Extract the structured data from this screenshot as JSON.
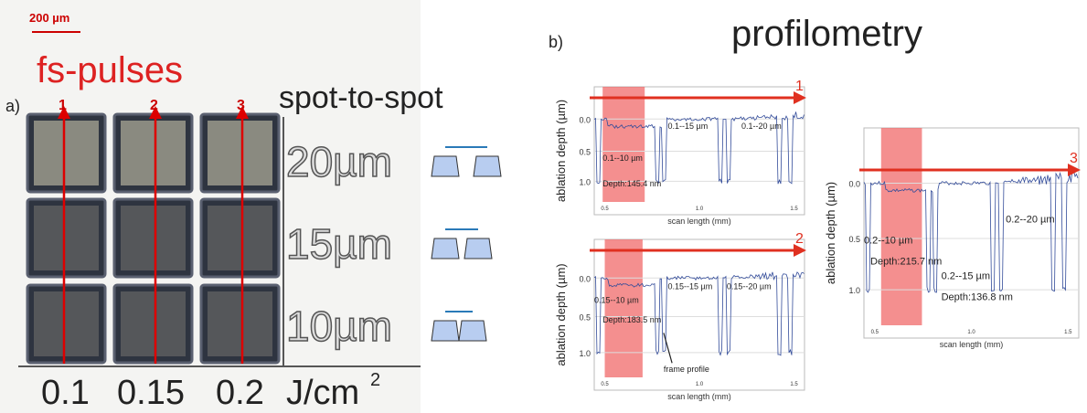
{
  "scale_bar": "200 µm",
  "left": {
    "panel_label": "a)",
    "title": "fs-pulses",
    "columns": [
      "1",
      "2",
      "3"
    ],
    "spot_heading": "spot-to-spot",
    "spacings": [
      "20µm",
      "15µm",
      "10µm"
    ],
    "fluences": [
      "0.1",
      "0.15",
      "0.2"
    ],
    "unit": "J/cm",
    "unit_sup": "2"
  },
  "right": {
    "panel_label": "b)",
    "title": "profilometry",
    "plots": [
      {
        "arrow_label": "1",
        "y_label": "ablation depth (µm)",
        "x_label": "scan length (mm)",
        "y_ticks": [
          "0.0",
          "0.5",
          "1.0"
        ],
        "x_ticks": [
          "0.5",
          "1.0",
          "1.5"
        ],
        "annotations": [
          "0.1--10 µm",
          "Depth:145.4 nm",
          "0.1--15 µm",
          "0.1--20 µm"
        ]
      },
      {
        "arrow_label": "2",
        "y_label": "ablation depth (µm)",
        "x_label": "scan length (mm)",
        "y_ticks": [
          "0.0",
          "0.5",
          "1.0"
        ],
        "x_ticks": [
          "0.5",
          "1.0",
          "1.5"
        ],
        "annotations": [
          "0.15--10 µm",
          "Depth:183.5 nm",
          "0.15--15 µm",
          "0.15--20 µm",
          "frame profile"
        ]
      },
      {
        "arrow_label": "3",
        "y_label": "ablation depth (µm)",
        "x_label": "scan length (mm)",
        "y_ticks": [
          "0.0",
          "0.5",
          "1.0"
        ],
        "x_ticks": [
          "0.5",
          "1.0",
          "1.5"
        ],
        "annotations": [
          "0.2--10 µm",
          "Depth:215.7 nm",
          "0.2--15 µm",
          "Depth:136.8 nm",
          "0.2--20 µm"
        ]
      }
    ]
  }
}
